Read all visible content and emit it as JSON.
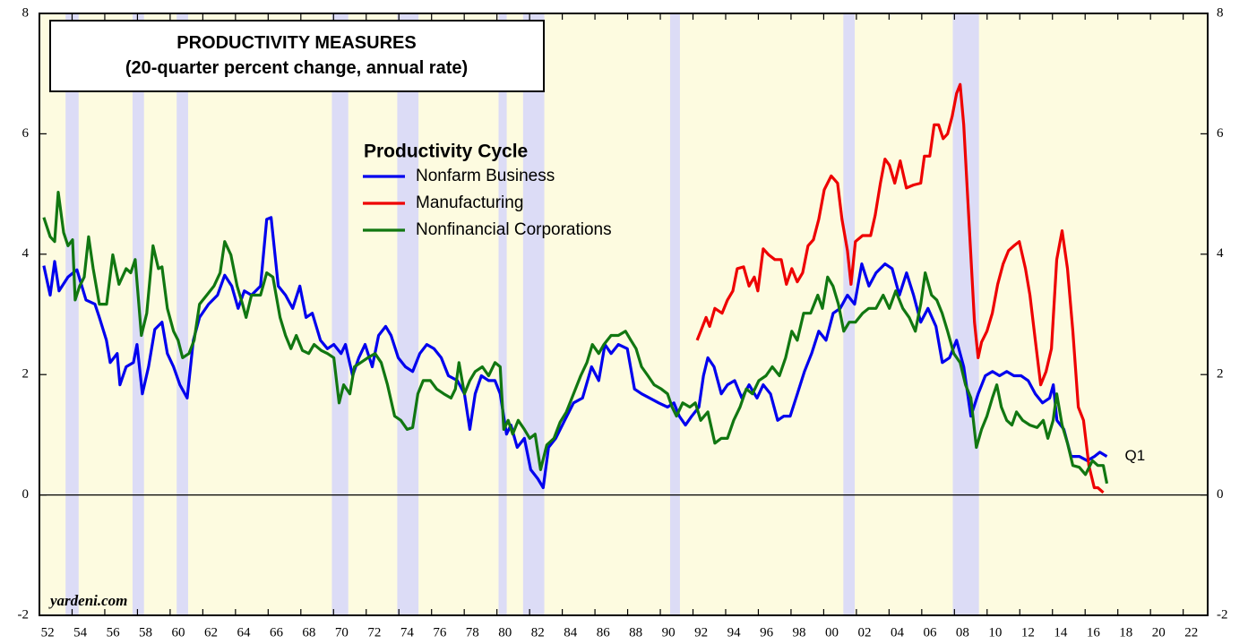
{
  "chart_data": {
    "type": "line",
    "title": "PRODUCTIVITY MEASURES",
    "subtitle": "(20-quarter percent change, annual rate)",
    "legend_title": "Productivity Cycle",
    "annotation": "Q1",
    "source": "yardeni.com",
    "xlim": [
      1952,
      2023.5
    ],
    "xticks": [
      {
        "value": 1952,
        "label": "52"
      },
      {
        "value": 1954,
        "label": "54"
      },
      {
        "value": 1956,
        "label": "56"
      },
      {
        "value": 1958,
        "label": "58"
      },
      {
        "value": 1960,
        "label": "60"
      },
      {
        "value": 1962,
        "label": "62"
      },
      {
        "value": 1964,
        "label": "64"
      },
      {
        "value": 1966,
        "label": "66"
      },
      {
        "value": 1968,
        "label": "68"
      },
      {
        "value": 1970,
        "label": "70"
      },
      {
        "value": 1972,
        "label": "72"
      },
      {
        "value": 1974,
        "label": "74"
      },
      {
        "value": 1976,
        "label": "76"
      },
      {
        "value": 1978,
        "label": "78"
      },
      {
        "value": 1980,
        "label": "80"
      },
      {
        "value": 1982,
        "label": "82"
      },
      {
        "value": 1984,
        "label": "84"
      },
      {
        "value": 1986,
        "label": "86"
      },
      {
        "value": 1988,
        "label": "88"
      },
      {
        "value": 1990,
        "label": "90"
      },
      {
        "value": 1992,
        "label": "92"
      },
      {
        "value": 1994,
        "label": "94"
      },
      {
        "value": 1996,
        "label": "96"
      },
      {
        "value": 1998,
        "label": "98"
      },
      {
        "value": 2000,
        "label": "00"
      },
      {
        "value": 2002,
        "label": "02"
      },
      {
        "value": 2004,
        "label": "04"
      },
      {
        "value": 2006,
        "label": "06"
      },
      {
        "value": 2008,
        "label": "08"
      },
      {
        "value": 2010,
        "label": "10"
      },
      {
        "value": 2012,
        "label": "12"
      },
      {
        "value": 2014,
        "label": "14"
      },
      {
        "value": 2016,
        "label": "16"
      },
      {
        "value": 2018,
        "label": "18"
      },
      {
        "value": 2020,
        "label": "20"
      },
      {
        "value": 2022,
        "label": "22"
      }
    ],
    "ylim": [
      -2,
      8
    ],
    "yticks": [
      -2,
      0,
      2,
      4,
      6,
      8
    ],
    "y2lim": [
      -2,
      8
    ],
    "y2ticks": [
      -2,
      0,
      2,
      4,
      6,
      8
    ],
    "recessions": [
      [
        1953.6,
        1954.4
      ],
      [
        1957.7,
        1958.4
      ],
      [
        1960.4,
        1961.1
      ],
      [
        1969.9,
        1970.9
      ],
      [
        1973.9,
        1975.2
      ],
      [
        1980.1,
        1980.6
      ],
      [
        1981.6,
        1982.9
      ],
      [
        1990.6,
        1991.2
      ],
      [
        2001.2,
        2001.9
      ],
      [
        2007.9,
        2009.5
      ]
    ],
    "recession_color": "#dcdcf6",
    "background": "#fdfbe0",
    "series": [
      {
        "name": "Nonfarm Business",
        "color": "#0000ee",
        "x": [
          1952.27,
          1952.66,
          1952.93,
          1953.2,
          1953.75,
          1954.3,
          1954.85,
          1955.4,
          1955.67,
          1956.1,
          1956.33,
          1956.76,
          1956.93,
          1957.31,
          1957.75,
          1957.97,
          1958.3,
          1958.68,
          1959.06,
          1959.5,
          1959.83,
          1960.21,
          1960.6,
          1961.04,
          1961.42,
          1961.8,
          1962.35,
          1962.9,
          1963.34,
          1963.77,
          1964.16,
          1964.54,
          1964.98,
          1965.53,
          1965.91,
          1966.18,
          1966.62,
          1967.06,
          1967.5,
          1967.94,
          1968.32,
          1968.7,
          1969.2,
          1969.63,
          1970.02,
          1970.46,
          1970.73,
          1971.17,
          1971.55,
          1971.93,
          1972.37,
          1972.76,
          1973.19,
          1973.52,
          1973.96,
          1974.4,
          1974.84,
          1975.28,
          1975.71,
          1976.15,
          1976.59,
          1977.03,
          1977.58,
          1978.01,
          1978.34,
          1978.67,
          1979.05,
          1979.49,
          1979.88,
          1980.2,
          1980.59,
          1980.86,
          1981.24,
          1981.68,
          1982.07,
          1982.5,
          1982.83,
          1983.16,
          1983.6,
          1984.15,
          1984.69,
          1985.24,
          1985.79,
          1986.23,
          1986.61,
          1986.99,
          1987.43,
          1987.98,
          1988.42,
          1988.86,
          1989.35,
          1989.9,
          1990.44,
          1990.83,
          1991.16,
          1991.54,
          1991.92,
          1992.36,
          1992.64,
          1992.91,
          1993.29,
          1993.73,
          1994.11,
          1994.55,
          1994.99,
          1995.43,
          1995.92,
          1996.3,
          1996.74,
          1997.18,
          1997.56,
          1997.95,
          1998.39,
          1998.82,
          1999.26,
          1999.7,
          2000.14,
          2000.58,
          2001.01,
          2001.45,
          2001.89,
          2002.33,
          2002.77,
          2003.2,
          2003.75,
          2004.19,
          2004.63,
          2005.07,
          2005.5,
          2005.94,
          2006.38,
          2006.87,
          2007.26,
          2007.7,
          2008.13,
          2008.57,
          2009.01,
          2009.45,
          2009.89,
          2010.33,
          2010.76,
          2011.2,
          2011.64,
          2012.08,
          2012.51,
          2012.95,
          2013.39,
          2013.83,
          2014.05,
          2014.27,
          2014.7,
          2015.14,
          2015.64,
          2016.13,
          2016.57,
          2016.9,
          2017.33
        ],
        "values": [
          3.81,
          3.32,
          3.88,
          3.39,
          3.62,
          3.74,
          3.24,
          3.17,
          2.95,
          2.57,
          2.2,
          2.35,
          1.83,
          2.13,
          2.2,
          2.5,
          1.68,
          2.13,
          2.75,
          2.87,
          2.35,
          2.13,
          1.83,
          1.61,
          2.57,
          2.95,
          3.17,
          3.32,
          3.65,
          3.47,
          3.1,
          3.39,
          3.32,
          3.47,
          4.58,
          4.61,
          3.47,
          3.32,
          3.1,
          3.47,
          2.95,
          3.02,
          2.57,
          2.43,
          2.5,
          2.35,
          2.5,
          1.98,
          2.28,
          2.5,
          2.13,
          2.65,
          2.8,
          2.65,
          2.28,
          2.13,
          2.05,
          2.35,
          2.5,
          2.43,
          2.28,
          1.98,
          1.9,
          1.68,
          1.09,
          1.68,
          1.98,
          1.9,
          1.9,
          1.68,
          1.01,
          1.16,
          0.79,
          0.94,
          0.42,
          0.27,
          0.12,
          0.79,
          0.94,
          1.24,
          1.53,
          1.61,
          2.13,
          1.9,
          2.5,
          2.35,
          2.5,
          2.43,
          1.76,
          1.68,
          1.61,
          1.53,
          1.46,
          1.53,
          1.31,
          1.16,
          1.31,
          1.46,
          1.98,
          2.28,
          2.13,
          1.68,
          1.83,
          1.9,
          1.61,
          1.83,
          1.61,
          1.83,
          1.68,
          1.24,
          1.31,
          1.31,
          1.68,
          2.05,
          2.35,
          2.72,
          2.57,
          3.02,
          3.1,
          3.32,
          3.17,
          3.84,
          3.47,
          3.69,
          3.84,
          3.76,
          3.32,
          3.69,
          3.32,
          2.87,
          3.1,
          2.8,
          2.2,
          2.28,
          2.57,
          2.13,
          1.31,
          1.68,
          1.98,
          2.05,
          1.98,
          2.05,
          1.98,
          1.98,
          1.9,
          1.68,
          1.53,
          1.61,
          1.83,
          1.24,
          1.09,
          0.64,
          0.64,
          0.57,
          0.64,
          0.71,
          0.64
        ]
      },
      {
        "name": "Manufacturing",
        "color": "#ee0000",
        "x": [
          1992.25,
          1992.47,
          1992.8,
          1993.02,
          1993.34,
          1993.78,
          1994.11,
          1994.44,
          1994.71,
          1995.1,
          1995.43,
          1995.75,
          1995.97,
          1996.3,
          1996.63,
          1997.01,
          1997.4,
          1997.72,
          1998.05,
          1998.38,
          1998.71,
          1999.04,
          1999.37,
          1999.7,
          2000.03,
          2000.46,
          2000.85,
          2001.12,
          2001.45,
          2001.67,
          2001.94,
          2002.38,
          2002.87,
          2003.15,
          2003.47,
          2003.75,
          2004.02,
          2004.35,
          2004.68,
          2005.06,
          2005.5,
          2005.94,
          2006.16,
          2006.49,
          2006.76,
          2007.03,
          2007.31,
          2007.58,
          2007.86,
          2008.13,
          2008.35,
          2008.57,
          2008.9,
          2009.23,
          2009.45,
          2009.66,
          2009.99,
          2010.32,
          2010.65,
          2010.98,
          2011.31,
          2011.64,
          2011.97,
          2012.35,
          2012.62,
          2012.95,
          2013.28,
          2013.61,
          2013.94,
          2014.26,
          2014.59,
          2014.92,
          2015.25,
          2015.58,
          2015.9,
          2016.23,
          2016.56,
          2016.78,
          2017.11
        ],
        "values": [
          2.57,
          2.72,
          2.95,
          2.8,
          3.1,
          3.02,
          3.24,
          3.39,
          3.76,
          3.79,
          3.47,
          3.62,
          3.39,
          4.09,
          3.99,
          3.91,
          3.91,
          3.5,
          3.76,
          3.54,
          3.69,
          4.14,
          4.24,
          4.58,
          5.07,
          5.3,
          5.18,
          4.58,
          4.06,
          3.5,
          4.21,
          4.31,
          4.31,
          4.65,
          5.18,
          5.58,
          5.48,
          5.18,
          5.55,
          5.1,
          5.15,
          5.18,
          5.63,
          5.63,
          6.15,
          6.15,
          5.92,
          6.0,
          6.29,
          6.67,
          6.82,
          6.15,
          4.51,
          2.87,
          2.28,
          2.54,
          2.72,
          3.02,
          3.5,
          3.84,
          4.06,
          4.14,
          4.21,
          3.76,
          3.32,
          2.57,
          1.83,
          2.05,
          2.43,
          3.91,
          4.39,
          3.76,
          2.72,
          1.46,
          1.24,
          0.49,
          0.12,
          0.12,
          0.04
        ]
      },
      {
        "name": "Nonfinancial Corporations",
        "color": "#117711",
        "x": [
          1952.27,
          1952.66,
          1952.93,
          1953.15,
          1953.48,
          1953.75,
          1954.03,
          1954.19,
          1954.46,
          1954.74,
          1955.01,
          1955.29,
          1955.67,
          1956.11,
          1956.49,
          1956.87,
          1957.31,
          1957.59,
          1957.86,
          1958.24,
          1958.57,
          1958.95,
          1959.28,
          1959.5,
          1959.83,
          1960.21,
          1960.49,
          1960.76,
          1961.15,
          1961.47,
          1961.8,
          1962.24,
          1962.68,
          1963.06,
          1963.34,
          1963.72,
          1964.1,
          1964.43,
          1964.65,
          1964.98,
          1965.53,
          1965.91,
          1966.29,
          1966.73,
          1967.06,
          1967.39,
          1967.72,
          1968.1,
          1968.48,
          1968.81,
          1969.25,
          1969.63,
          1970.02,
          1970.34,
          1970.62,
          1971,
          1971.28,
          1971.66,
          1972.1,
          1972.54,
          1972.92,
          1973.3,
          1973.74,
          1974.12,
          1974.51,
          1974.84,
          1975.16,
          1975.49,
          1975.93,
          1976.31,
          1976.75,
          1977.19,
          1977.46,
          1977.68,
          1978.01,
          1978.34,
          1978.67,
          1979.11,
          1979.49,
          1979.88,
          1980.2,
          1980.42,
          1980.69,
          1980.97,
          1981.3,
          1981.68,
          1982.01,
          1982.34,
          1982.67,
          1983.05,
          1983.49,
          1983.87,
          1984.25,
          1984.69,
          1985.13,
          1985.51,
          1985.84,
          1986.23,
          1986.55,
          1986.99,
          1987.43,
          1987.87,
          1988.2,
          1988.52,
          1988.85,
          1989.24,
          1989.62,
          1990.06,
          1990.44,
          1990.72,
          1990.99,
          1991.37,
          1991.81,
          1992.14,
          1992.47,
          1992.91,
          1993.34,
          1993.73,
          1994.11,
          1994.49,
          1994.88,
          1995.26,
          1995.64,
          1996.03,
          1996.47,
          1996.85,
          1997.29,
          1997.67,
          1998.05,
          1998.38,
          1998.77,
          1999.2,
          1999.64,
          1999.92,
          2000.24,
          2000.57,
          2000.9,
          2001.23,
          2001.56,
          2001.94,
          2002.38,
          2002.76,
          2003.2,
          2003.64,
          2004.02,
          2004.41,
          2004.84,
          2005.23,
          2005.61,
          2005.94,
          2006.21,
          2006.6,
          2006.92,
          2007.25,
          2007.58,
          2007.96,
          2008.35,
          2008.68,
          2009.01,
          2009.34,
          2009.66,
          2009.99,
          2010.32,
          2010.59,
          2010.87,
          2011.2,
          2011.52,
          2011.8,
          2012.18,
          2012.62,
          2013.06,
          2013.44,
          2013.72,
          2014.04,
          2014.26,
          2014.59,
          2014.92,
          2015.25,
          2015.64,
          2016.02,
          2016.45,
          2016.78,
          2017.11,
          2017.33
        ],
        "values": [
          4.61,
          4.29,
          4.21,
          5.03,
          4.36,
          4.14,
          4.24,
          3.24,
          3.47,
          3.62,
          4.29,
          3.76,
          3.17,
          3.17,
          3.99,
          3.5,
          3.76,
          3.69,
          3.91,
          2.65,
          3.02,
          4.14,
          3.76,
          3.79,
          3.1,
          2.72,
          2.57,
          2.28,
          2.35,
          2.57,
          3.17,
          3.32,
          3.47,
          3.69,
          4.21,
          3.99,
          3.47,
          3.17,
          2.95,
          3.32,
          3.32,
          3.69,
          3.62,
          2.95,
          2.65,
          2.43,
          2.65,
          2.4,
          2.35,
          2.5,
          2.4,
          2.35,
          2.28,
          1.53,
          1.83,
          1.68,
          2.13,
          2.2,
          2.28,
          2.35,
          2.2,
          1.83,
          1.31,
          1.24,
          1.09,
          1.12,
          1.68,
          1.9,
          1.9,
          1.76,
          1.68,
          1.61,
          1.76,
          2.2,
          1.68,
          1.9,
          2.05,
          2.13,
          1.98,
          2.2,
          2.13,
          1.09,
          1.24,
          1.01,
          1.24,
          1.09,
          0.94,
          1.01,
          0.42,
          0.83,
          0.94,
          1.21,
          1.38,
          1.68,
          1.98,
          2.2,
          2.5,
          2.35,
          2.5,
          2.65,
          2.65,
          2.72,
          2.57,
          2.43,
          2.13,
          1.98,
          1.83,
          1.76,
          1.68,
          1.46,
          1.31,
          1.53,
          1.46,
          1.53,
          1.24,
          1.38,
          0.86,
          0.94,
          0.94,
          1.24,
          1.46,
          1.76,
          1.68,
          1.9,
          1.98,
          2.13,
          1.98,
          2.28,
          2.72,
          2.57,
          3.02,
          3.02,
          3.32,
          3.1,
          3.62,
          3.47,
          3.17,
          2.72,
          2.87,
          2.87,
          3.02,
          3.1,
          3.1,
          3.32,
          3.1,
          3.39,
          3.1,
          2.95,
          2.72,
          3.17,
          3.69,
          3.32,
          3.24,
          3.02,
          2.72,
          2.35,
          2.2,
          1.83,
          1.61,
          0.79,
          1.09,
          1.31,
          1.61,
          1.83,
          1.46,
          1.24,
          1.16,
          1.38,
          1.24,
          1.16,
          1.12,
          1.24,
          0.94,
          1.24,
          1.68,
          1.16,
          0.86,
          0.49,
          0.46,
          0.34,
          0.57,
          0.49,
          0.49,
          0.19
        ]
      }
    ]
  }
}
